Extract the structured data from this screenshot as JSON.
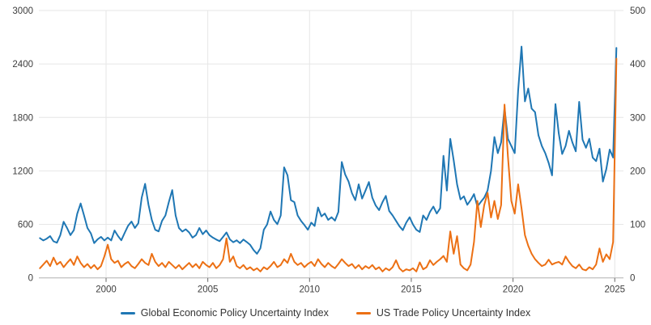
{
  "chart_data": {
    "type": "line",
    "title": "",
    "grid": true,
    "legend_position": "bottom-center",
    "x_axis": {
      "ticks": [
        2000,
        2005,
        2010,
        2015,
        2020,
        2025
      ],
      "range": [
        1996.7,
        2025.4
      ]
    },
    "left_axis": {
      "ticks": [
        0,
        600,
        1200,
        1800,
        2400,
        3000
      ],
      "range": [
        0,
        3000
      ]
    },
    "right_axis": {
      "ticks": [
        0,
        100,
        200,
        300,
        400,
        500
      ],
      "range": [
        0,
        500
      ]
    },
    "series": [
      {
        "name": "Global Economic Policy Uncertainty Index",
        "axis": "left",
        "color": "#1f77b4",
        "t_start": 1996.75,
        "t_step": 0.166667,
        "values": [
          445,
          420,
          440,
          468,
          410,
          395,
          480,
          630,
          560,
          480,
          535,
          720,
          835,
          700,
          560,
          500,
          390,
          432,
          460,
          420,
          452,
          420,
          532,
          470,
          422,
          505,
          585,
          632,
          560,
          612,
          900,
          1055,
          820,
          650,
          540,
          522,
          640,
          700,
          850,
          985,
          700,
          560,
          520,
          545,
          510,
          452,
          480,
          560,
          490,
          532,
          480,
          452,
          430,
          412,
          460,
          510,
          432,
          400,
          422,
          390,
          430,
          402,
          370,
          312,
          270,
          332,
          540,
          600,
          745,
          650,
          602,
          700,
          1240,
          1150,
          872,
          850,
          700,
          640,
          592,
          540,
          620,
          582,
          790,
          690,
          722,
          650,
          680,
          642,
          740,
          1300,
          1160,
          1080,
          950,
          872,
          1050,
          890,
          980,
          1075,
          900,
          812,
          760,
          850,
          920,
          750,
          700,
          640,
          580,
          535,
          620,
          680,
          600,
          540,
          515,
          700,
          650,
          740,
          800,
          722,
          780,
          1370,
          980,
          1560,
          1320,
          1050,
          880,
          915,
          820,
          872,
          940,
          800,
          852,
          900,
          982,
          1200,
          1580,
          1400,
          1520,
          1905,
          1560,
          1480,
          1400,
          2100,
          2595,
          1980,
          2125,
          1900,
          1860,
          1600,
          1480,
          1400,
          1290,
          1150,
          1950,
          1620,
          1390,
          1480,
          1650,
          1520,
          1420,
          1975,
          1550,
          1460,
          1560,
          1350,
          1310,
          1450,
          1080,
          1220,
          1440,
          1350,
          2580
        ]
      },
      {
        "name": "US Trade Policy Uncertainty Index",
        "axis": "right",
        "color": "#ec7014",
        "t_start": 1996.75,
        "t_step": 0.166667,
        "values": [
          18,
          25,
          32,
          22,
          38,
          25,
          30,
          20,
          28,
          35,
          24,
          40,
          28,
          20,
          26,
          18,
          24,
          16,
          22,
          40,
          62,
          35,
          28,
          32,
          20,
          26,
          30,
          22,
          18,
          26,
          35,
          28,
          24,
          45,
          30,
          22,
          28,
          20,
          30,
          24,
          18,
          24,
          16,
          22,
          28,
          20,
          26,
          18,
          30,
          24,
          20,
          28,
          18,
          24,
          35,
          74,
          30,
          40,
          22,
          18,
          24,
          16,
          20,
          14,
          18,
          12,
          20,
          16,
          22,
          30,
          20,
          24,
          35,
          28,
          45,
          30,
          24,
          28,
          20,
          26,
          30,
          22,
          35,
          26,
          20,
          28,
          22,
          18,
          26,
          35,
          28,
          22,
          26,
          18,
          24,
          16,
          22,
          18,
          24,
          16,
          20,
          12,
          18,
          14,
          20,
          33,
          18,
          12,
          16,
          14,
          18,
          12,
          29,
          16,
          20,
          33,
          24,
          30,
          35,
          41,
          30,
          87,
          45,
          78,
          25,
          18,
          14,
          25,
          67,
          144,
          95,
          136,
          159,
          113,
          144,
          110,
          136,
          324,
          227,
          144,
          120,
          175,
          130,
          80,
          60,
          45,
          35,
          28,
          22,
          25,
          34,
          25,
          28,
          30,
          25,
          40,
          30,
          22,
          18,
          25,
          16,
          14,
          20,
          16,
          25,
          55,
          30,
          44,
          35,
          67,
          410
        ]
      }
    ]
  },
  "legend": {
    "items": [
      {
        "label": "Global Economic Policy Uncertainty Index",
        "color": "#1f77b4"
      },
      {
        "label": "US Trade Policy Uncertainty Index",
        "color": "#ec7014"
      }
    ]
  },
  "style": {
    "gridline_color": "#e6e6e6",
    "axis_line_color": "#b0b0b0",
    "tick_color": "#666666",
    "tick_label_color": "#3c3c3c"
  }
}
